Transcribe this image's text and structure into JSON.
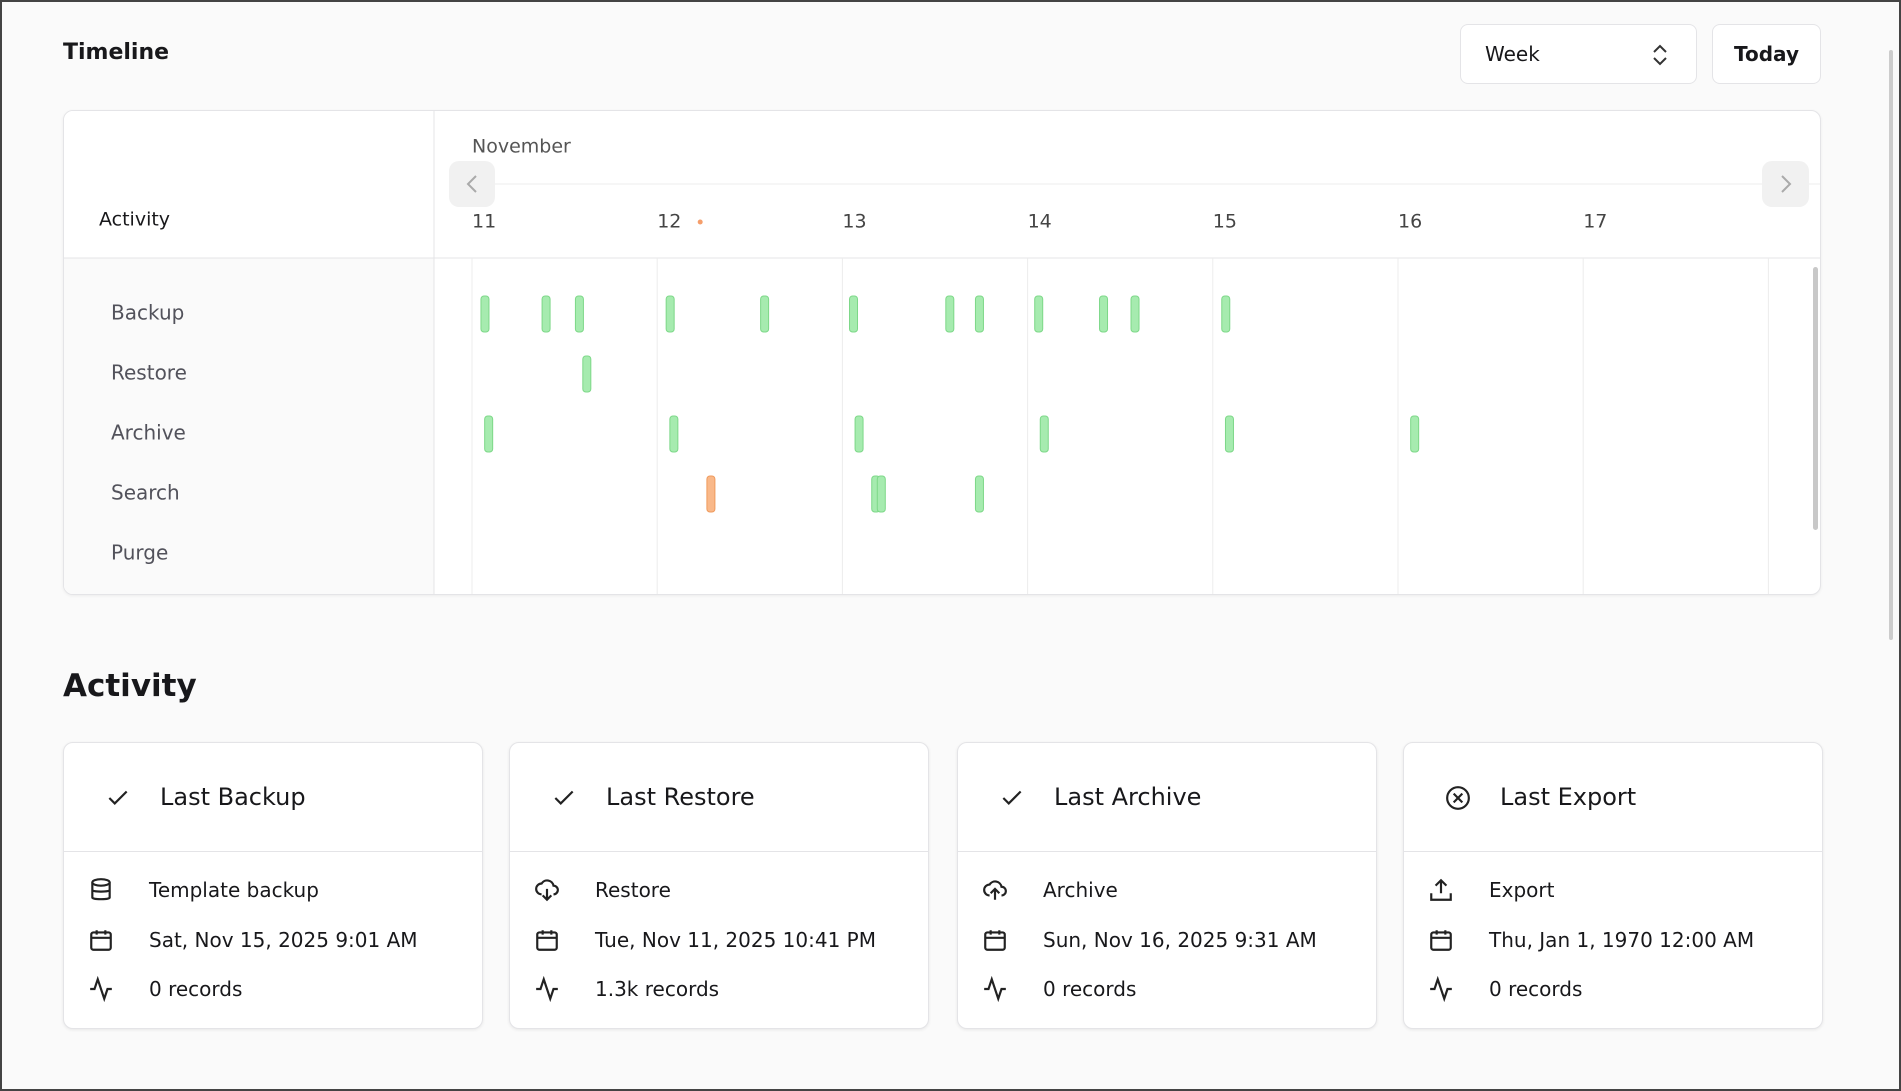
{
  "header": {
    "title": "Timeline",
    "view": "Week",
    "today_button": "Today"
  },
  "timeline": {
    "row_header": "Activity",
    "month": "November",
    "xlim": [
      11,
      18
    ],
    "xticks": [
      11,
      12,
      13,
      14,
      15,
      16,
      17
    ],
    "today": 12,
    "ok_color": "#a6ebaf",
    "failed_color": "#f9b889",
    "rows": [
      {
        "label": "Backup",
        "events": [
          11.07,
          11.4,
          11.58,
          12.07,
          12.58,
          13.06,
          13.58,
          13.74,
          14.06,
          14.41,
          14.58,
          15.07
        ],
        "failed": []
      },
      {
        "label": "Restore",
        "events": [
          11.62
        ],
        "failed": []
      },
      {
        "label": "Archive",
        "events": [
          11.09,
          12.09,
          13.09,
          14.09,
          15.09,
          16.09
        ],
        "failed": []
      },
      {
        "label": "Search",
        "events": [
          13.18,
          13.21,
          13.74
        ],
        "failed": [
          12.29
        ]
      },
      {
        "label": "Purge",
        "events": [],
        "failed": []
      }
    ]
  },
  "activity": {
    "title": "Activity",
    "cards": [
      {
        "status": "ok",
        "title": "Last Backup",
        "name": "Template backup",
        "date": "Sat, Nov 15, 2025 9:01 AM",
        "records": "0 records"
      },
      {
        "status": "ok",
        "title": "Last Restore",
        "name": "Restore",
        "date": "Tue, Nov 11, 2025 10:41 PM",
        "records": "1.3k records"
      },
      {
        "status": "ok",
        "title": "Last Archive",
        "name": "Archive",
        "date": "Sun, Nov 16, 2025 9:31 AM",
        "records": "0 records"
      },
      {
        "status": "failed",
        "title": "Last Export",
        "name": "Export",
        "date": "Thu, Jan 1, 1970 12:00 AM",
        "records": "0 records"
      }
    ]
  }
}
